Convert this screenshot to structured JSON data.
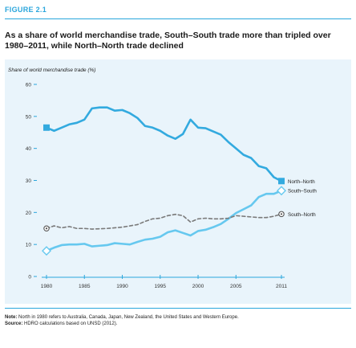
{
  "figure_label": "FIGURE 2.1",
  "title": "As a share of world merchandise trade, South–South trade more than tripled over 1980–2011, while North–North trade declined",
  "note": {
    "note_label": "Note:",
    "note_text": "North in 1980 refers to Australia, Canada, Japan, New Zealand, the United States and Western Europe.",
    "source_label": "Source:",
    "source_text": "HDRO calculations based on UNSD (2012)."
  },
  "colors": {
    "accent": "#2aa6dc",
    "panel_bg": "#e9f4fb",
    "north_north": "#33aadf",
    "south_south": "#66c8ef",
    "south_north": "#7a7a7a"
  },
  "chart_data": {
    "type": "line",
    "ylabel": "Share of world merchandise trade (%)",
    "xlabel": "",
    "ylim": [
      0,
      60
    ],
    "xlim": [
      1980,
      2011
    ],
    "yticks": [
      "0",
      "10",
      "20",
      "30",
      "40",
      "50",
      "60"
    ],
    "xticks": [
      "1980",
      "1985",
      "1990",
      "1995",
      "2000",
      "2005",
      "2011"
    ],
    "grid": false,
    "x": [
      1980,
      1981,
      1982,
      1983,
      1984,
      1985,
      1986,
      1987,
      1988,
      1989,
      1990,
      1991,
      1992,
      1993,
      1994,
      1995,
      1996,
      1997,
      1998,
      1999,
      2000,
      2001,
      2002,
      2003,
      2004,
      2005,
      2006,
      2007,
      2008,
      2009,
      2010,
      2011
    ],
    "series": [
      {
        "name": "North–North",
        "style": "solid",
        "marker": "square",
        "values": [
          46.5,
          45.5,
          46.5,
          47.5,
          48.0,
          49.0,
          52.5,
          52.8,
          52.8,
          51.8,
          52.0,
          51.0,
          49.5,
          47.0,
          46.5,
          45.5,
          44.0,
          43.0,
          44.5,
          49.0,
          46.5,
          46.3,
          45.3,
          44.3,
          42.0,
          40.0,
          38.0,
          37.0,
          34.5,
          33.8,
          31.0,
          29.8
        ]
      },
      {
        "name": "South–South",
        "style": "solid",
        "marker": "diamond",
        "values": [
          8.0,
          9.0,
          9.8,
          10.0,
          10.0,
          10.2,
          9.4,
          9.6,
          9.8,
          10.4,
          10.2,
          10.0,
          10.8,
          11.5,
          11.8,
          12.4,
          13.8,
          14.4,
          13.6,
          12.8,
          14.2,
          14.6,
          15.4,
          16.4,
          18.0,
          19.8,
          21.0,
          22.2,
          24.8,
          25.8,
          25.8,
          26.8
        ]
      },
      {
        "name": "South–North",
        "style": "dashed",
        "marker": "circle",
        "values": [
          15.0,
          15.8,
          15.2,
          15.6,
          15.0,
          15.0,
          14.8,
          14.9,
          15.0,
          15.2,
          15.4,
          15.8,
          16.2,
          17.2,
          18.0,
          18.2,
          19.0,
          19.4,
          19.0,
          17.0,
          18.0,
          18.2,
          18.0,
          18.0,
          18.2,
          19.0,
          18.8,
          18.6,
          18.4,
          18.4,
          18.8,
          19.5
        ]
      }
    ]
  }
}
